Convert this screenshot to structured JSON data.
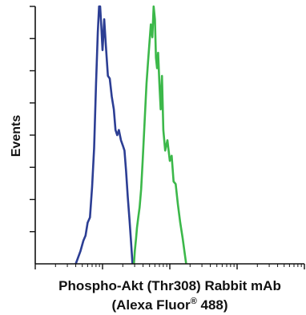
{
  "chart_data": {
    "type": "line",
    "title": "",
    "xlabel_line1": "Phospho-Akt (Thr308) Rabbit mAb",
    "xlabel_line2_main": "(Alexa Fluor",
    "xlabel_line2_sup": "®",
    "xlabel_line2_end": " 488)",
    "ylabel": "Events",
    "x_scale": "log",
    "xlim": [
      1,
      10000
    ],
    "ylim": [
      0,
      100
    ],
    "grid": false,
    "legend": "none",
    "series": [
      {
        "color": "#2c3e94",
        "x": [
          4.0,
          4.7,
          5.2,
          5.6,
          6.0,
          6.5,
          7.0,
          7.5,
          8.0,
          8.5,
          8.9,
          9.2,
          9.6,
          10.0,
          10.6,
          11.2,
          12.0,
          12.8,
          13.7,
          14.7,
          15.6,
          16.5,
          17.5,
          18.8,
          20.0,
          21.2,
          22.4,
          23.7,
          25.2,
          26.6,
          27.9
        ],
        "y": [
          0,
          5,
          9,
          11,
          16,
          18,
          30,
          45,
          70,
          90,
          100,
          100,
          92,
          83,
          95,
          85,
          73,
          72,
          65,
          60,
          52,
          50,
          52,
          48,
          46,
          44,
          36,
          26,
          17,
          8,
          0
        ]
      },
      {
        "color": "#3cb84a",
        "x": [
          29.3,
          30.2,
          31.5,
          32.5,
          34.0,
          35.6,
          37.5,
          39.5,
          42.2,
          45.0,
          47.3,
          49.8,
          52.2,
          55.0,
          57.5,
          60.0,
          62.3,
          64.7,
          67.0,
          70.0,
          73.2,
          76.5,
          80.0,
          85.3,
          92.0,
          100.0,
          106.6,
          113.6,
          122.0,
          132.0,
          143.0,
          155.0,
          166.6,
          175.0
        ],
        "y": [
          0,
          5,
          10,
          14,
          18,
          22,
          29,
          40,
          55,
          70,
          78,
          86,
          93,
          88,
          100,
          95,
          80,
          76,
          82,
          70,
          60,
          73,
          52,
          44,
          48,
          40,
          42,
          32,
          31,
          23,
          16,
          10,
          4,
          0
        ]
      }
    ]
  }
}
